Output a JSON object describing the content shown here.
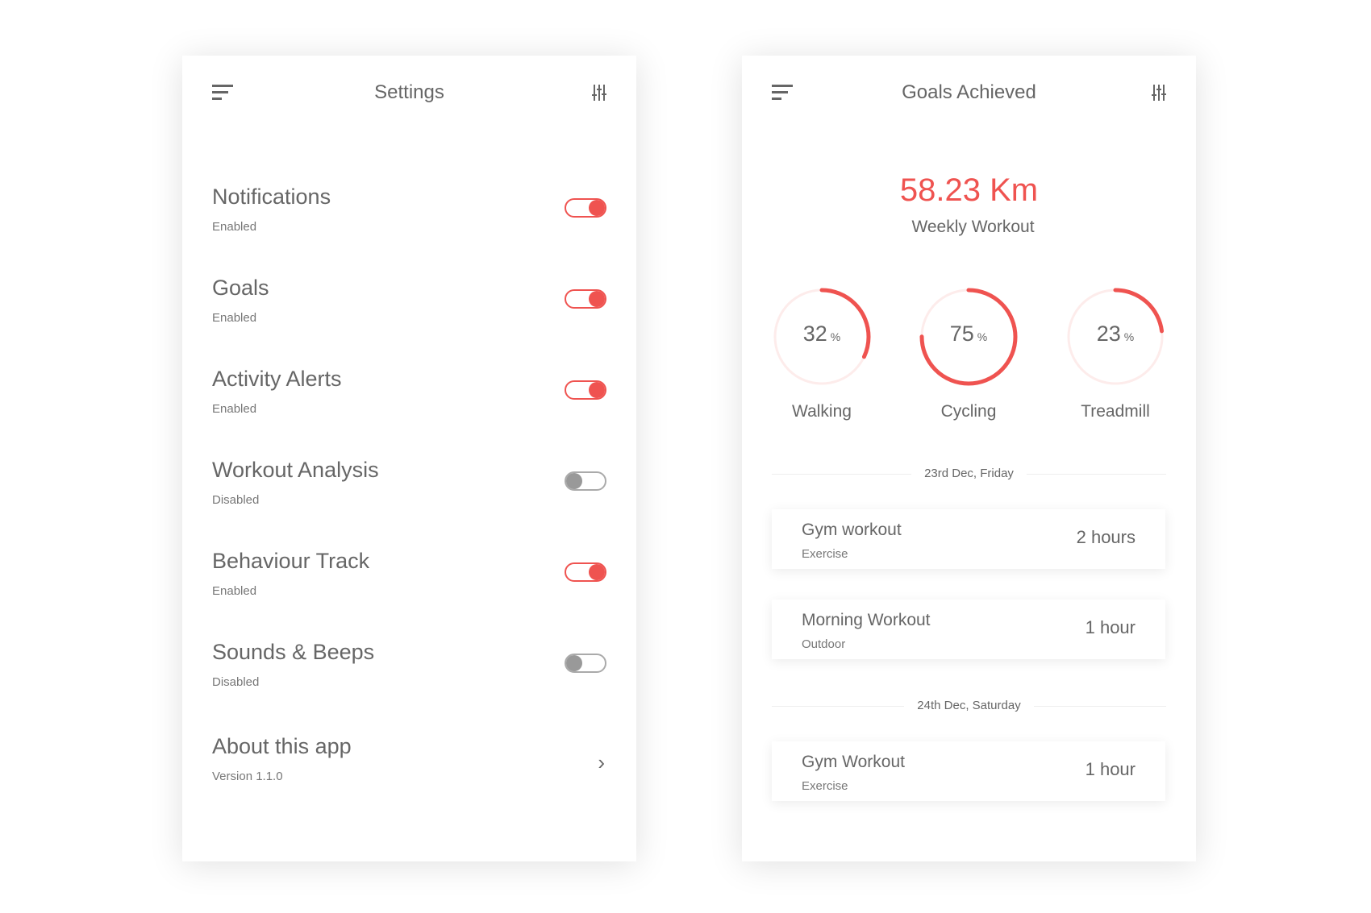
{
  "accent": "#ef5350",
  "settings": {
    "title": "Settings",
    "items": [
      {
        "label": "Notifications",
        "status": "Enabled",
        "enabled": true
      },
      {
        "label": "Goals",
        "status": "Enabled",
        "enabled": true
      },
      {
        "label": "Activity Alerts",
        "status": "Enabled",
        "enabled": true
      },
      {
        "label": "Workout Analysis",
        "status": "Disabled",
        "enabled": false
      },
      {
        "label": "Behaviour Track",
        "status": "Enabled",
        "enabled": true
      },
      {
        "label": "Sounds & Beeps",
        "status": "Disabled",
        "enabled": false
      }
    ],
    "about": {
      "label": "About this app",
      "version": "Version 1.1.0"
    }
  },
  "goals": {
    "title": "Goals Achieved",
    "distance": "58.23 Km",
    "distance_label": "Weekly Workout",
    "rings": [
      {
        "value": 32,
        "unit": "%",
        "label": "Walking"
      },
      {
        "value": 75,
        "unit": "%",
        "label": "Cycling"
      },
      {
        "value": 23,
        "unit": "%",
        "label": "Treadmill"
      }
    ],
    "days": [
      {
        "date": "23rd Dec, Friday",
        "entries": [
          {
            "title": "Gym workout",
            "type": "Exercise",
            "duration": "2 hours"
          },
          {
            "title": "Morning Workout",
            "type": "Outdoor",
            "duration": "1 hour"
          }
        ]
      },
      {
        "date": "24th Dec, Saturday",
        "entries": [
          {
            "title": "Gym Workout",
            "type": "Exercise",
            "duration": "1 hour"
          }
        ]
      }
    ]
  }
}
